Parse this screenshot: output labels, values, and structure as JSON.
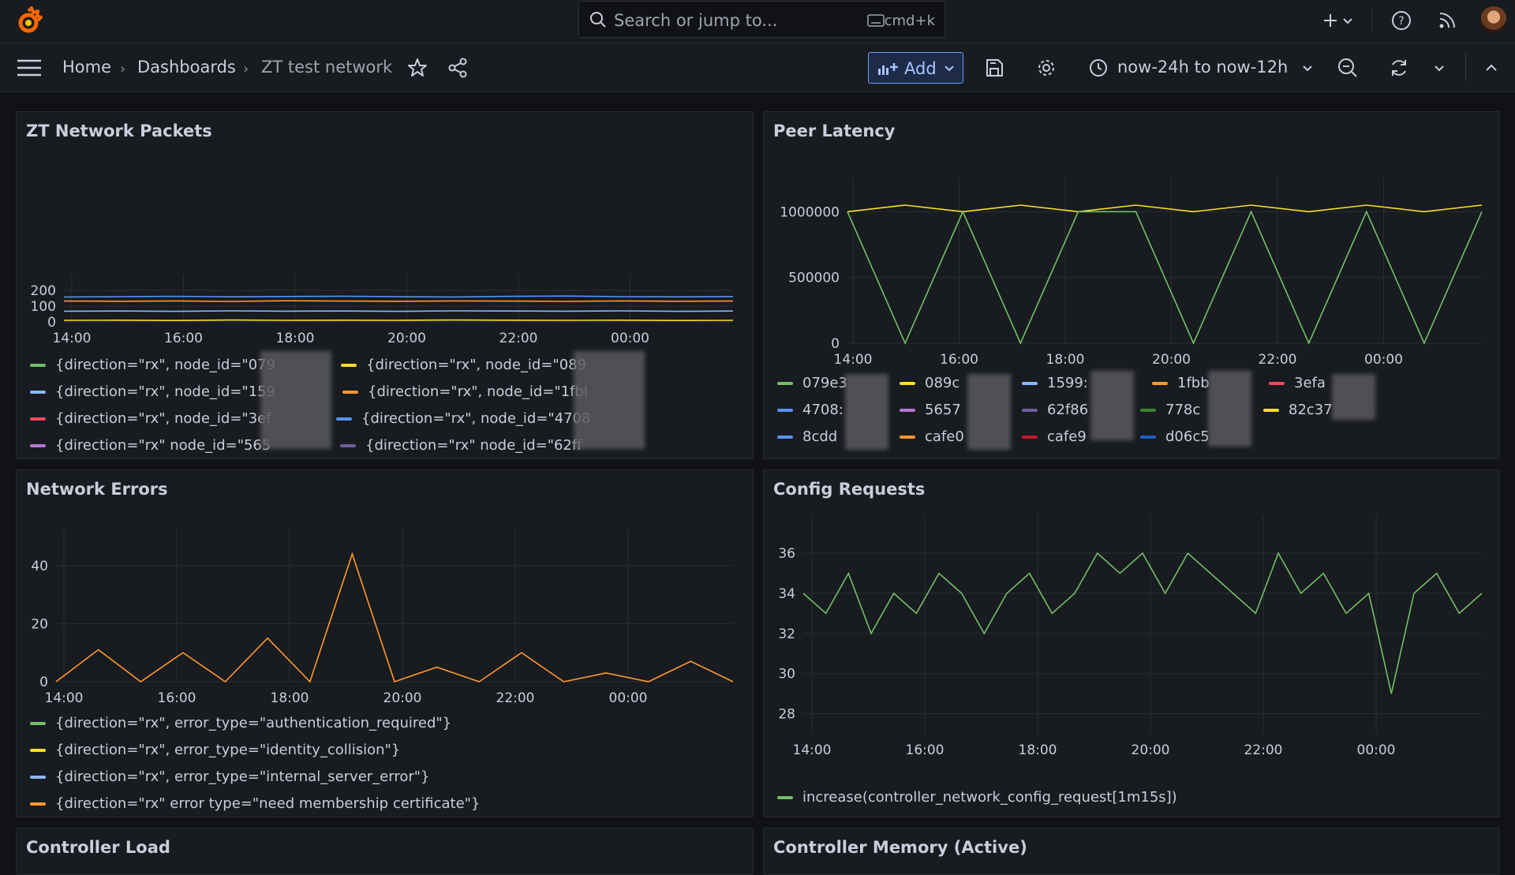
{
  "search": {
    "placeholder": "Search or jump to...",
    "shortcut": "cmd+k"
  },
  "breadcrumb": [
    "Home",
    "Dashboards",
    "ZT test network"
  ],
  "toolbar": {
    "add_label": "Add",
    "time_range": "now-24h to now-12h"
  },
  "colors": {
    "accent": "#6e9fff",
    "panel_bg": "#181b1f",
    "page_bg": "#111217"
  },
  "panels": {
    "packets": {
      "title": "ZT Network Packets",
      "legend": [
        {
          "label": "{direction=\"rx\", node_id=\"079",
          "color": "#73bf69"
        },
        {
          "label": "{direction=\"rx\", node_id=\"089",
          "color": "#fade2a"
        },
        {
          "label": "{direction=\"rx\", node_id=\"159",
          "color": "#8ab8ff"
        },
        {
          "label": "{direction=\"rx\", node_id=\"1fbl",
          "color": "#ff9830"
        },
        {
          "label": "{direction=\"rx\", node_id=\"3ef",
          "color": "#f2495c"
        },
        {
          "label": "{direction=\"rx\", node_id=\"4708",
          "color": "#5794f2"
        },
        {
          "label": "{direction=\"rx\" node_id=\"565",
          "color": "#b877d9"
        },
        {
          "label": "{direction=\"rx\" node_id=\"62ff",
          "color": "#705da0"
        }
      ]
    },
    "latency": {
      "title": "Peer Latency",
      "legend": [
        {
          "label": "079e3",
          "color": "#73bf69"
        },
        {
          "label": "089c",
          "color": "#fade2a"
        },
        {
          "label": "1599:",
          "color": "#8ab8ff"
        },
        {
          "label": "1fbb",
          "color": "#ff9830"
        },
        {
          "label": "3efa",
          "color": "#f2495c"
        },
        {
          "label": "4708:",
          "color": "#5794f2"
        },
        {
          "label": "5657",
          "color": "#b877d9"
        },
        {
          "label": "62f86",
          "color": "#705da0"
        },
        {
          "label": "778c",
          "color": "#37872d"
        },
        {
          "label": "82c37",
          "color": "#fade2a"
        },
        {
          "label": "8cdd",
          "color": "#5794f2"
        },
        {
          "label": "cafe0",
          "color": "#ff9830"
        },
        {
          "label": "cafe9",
          "color": "#c4162a"
        },
        {
          "label": "d06c5",
          "color": "#1f60c4"
        }
      ]
    },
    "errors": {
      "title": "Network Errors",
      "legend": [
        {
          "label": "{direction=\"rx\", error_type=\"authentication_required\"}",
          "color": "#73bf69"
        },
        {
          "label": "{direction=\"rx\", error_type=\"identity_collision\"}",
          "color": "#fade2a"
        },
        {
          "label": "{direction=\"rx\", error_type=\"internal_server_error\"}",
          "color": "#8ab8ff"
        },
        {
          "label": "{direction=\"rx\" error type=\"need membership certificate\"}",
          "color": "#ff9830"
        }
      ]
    },
    "config": {
      "title": "Config Requests",
      "legend": [
        {
          "label": "increase(controller_network_config_request[1m15s])",
          "color": "#73bf69"
        }
      ]
    },
    "load": {
      "title": "Controller Load"
    },
    "memory": {
      "title": "Controller Memory (Active)"
    }
  },
  "chart_data": [
    {
      "type": "line",
      "title": "ZT Network Packets",
      "x_ticks": [
        "14:00",
        "16:00",
        "18:00",
        "20:00",
        "22:00",
        "00:00"
      ],
      "y_ticks": [
        "0",
        "100",
        "200"
      ],
      "ylim": [
        0,
        250
      ],
      "series": [
        {
          "name": "{direction=\"rx\", node_id=\"159",
          "values": [
            158,
            160,
            162,
            159,
            161,
            163,
            160,
            158,
            162,
            164,
            160,
            159,
            161
          ]
        },
        {
          "name": "{direction=\"rx\", node_id=\"1fbl",
          "values": [
            132,
            131,
            133,
            130,
            134,
            132,
            131,
            133,
            132,
            130,
            133,
            131,
            132
          ]
        },
        {
          "name": "{direction=\"rx\", node_id=\"079",
          "values": [
            68,
            69,
            67,
            70,
            68,
            69,
            67,
            70,
            69,
            68,
            70,
            67,
            69
          ]
        },
        {
          "name": "{direction=\"rx\", node_id=\"089",
          "values": [
            10,
            11,
            9,
            12,
            10,
            11,
            10,
            12,
            11,
            10,
            11,
            9,
            10
          ]
        }
      ]
    },
    {
      "type": "line",
      "title": "Peer Latency",
      "x_ticks": [
        "14:00",
        "16:00",
        "18:00",
        "20:00",
        "22:00",
        "00:00"
      ],
      "y_ticks": [
        "0",
        "500000",
        "1000000"
      ],
      "ylim": [
        0,
        1200000
      ],
      "series": [
        {
          "name": "089c",
          "values": [
            1000000,
            1050000,
            1000000,
            1050000,
            1000000,
            1050000,
            1000000,
            1050000,
            1000000,
            1050000,
            1000000,
            1050000
          ]
        },
        {
          "name": "079e3",
          "values": [
            1000000,
            0,
            1000000,
            0,
            1000000,
            1000000,
            0,
            1000000,
            0,
            1000000,
            0,
            1000000
          ]
        }
      ]
    },
    {
      "type": "line",
      "title": "Network Errors",
      "x_ticks": [
        "14:00",
        "16:00",
        "18:00",
        "20:00",
        "22:00",
        "00:00"
      ],
      "y_ticks": [
        "0",
        "20",
        "40"
      ],
      "ylim": [
        0,
        50
      ],
      "series": [
        {
          "name": "{direction=\"rx\" error type=\"need membership certificate\"}",
          "values": [
            0,
            11,
            0,
            10,
            0,
            15,
            0,
            44,
            0,
            5,
            0,
            10,
            0,
            3,
            0,
            7,
            0
          ]
        }
      ]
    },
    {
      "type": "line",
      "title": "Config Requests",
      "x_ticks": [
        "14:00",
        "16:00",
        "18:00",
        "20:00",
        "22:00",
        "00:00"
      ],
      "y_ticks": [
        "28",
        "30",
        "32",
        "34",
        "36"
      ],
      "ylim": [
        27,
        37.5
      ],
      "series": [
        {
          "name": "increase(controller_network_config_request[1m15s])",
          "values": [
            34,
            33,
            35,
            32,
            34,
            33,
            35,
            34,
            32,
            34,
            35,
            33,
            34,
            36,
            35,
            36,
            34,
            36,
            35,
            34,
            33,
            36,
            34,
            35,
            33,
            34,
            29,
            34,
            35,
            33,
            34
          ]
        }
      ]
    }
  ]
}
